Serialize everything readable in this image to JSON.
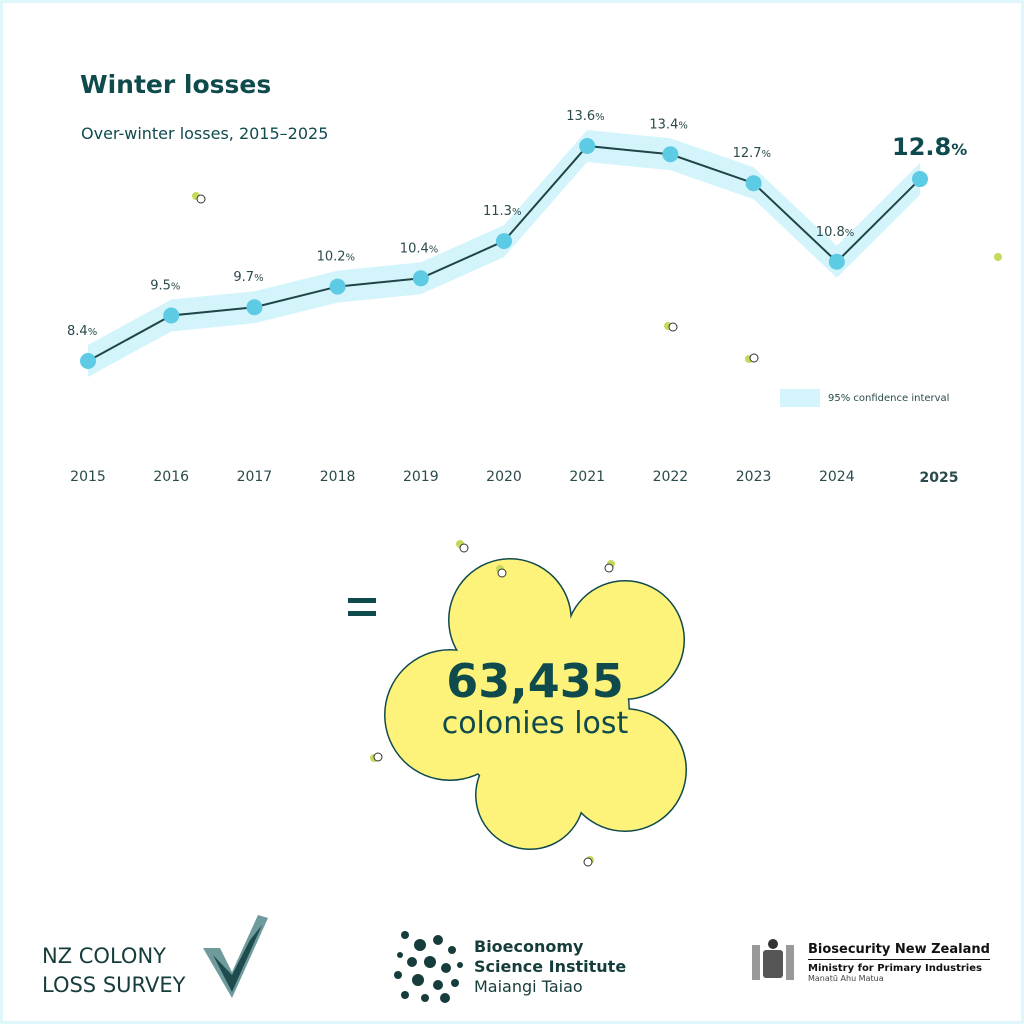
{
  "title": "Winter losses",
  "subtitle": "Over-winter losses, 2015–2025",
  "chart_data": {
    "type": "line",
    "title": "Winter losses",
    "subtitle": "Over-winter losses, 2015–2025",
    "x": [
      "2015",
      "2016",
      "2017",
      "2018",
      "2019",
      "2020",
      "2021",
      "2022",
      "2023",
      "2024",
      "2025"
    ],
    "values": [
      8.4,
      9.5,
      9.7,
      10.2,
      10.4,
      11.3,
      13.6,
      13.4,
      12.7,
      10.8,
      12.8
    ],
    "labels": [
      "8.4",
      "9.5",
      "9.7",
      "10.2",
      "10.4",
      "11.3",
      "13.6",
      "13.4",
      "12.7",
      "10.8",
      "12.8"
    ],
    "unit": "%",
    "legend": "95% confidence interval",
    "legend_position": "bottom-right",
    "grid": false,
    "colors": {
      "line": "#1f4547",
      "point": "#5ccbe3",
      "band": "#d4f4fb"
    }
  },
  "summary": {
    "value": "63,435",
    "label": "colonies lost",
    "equals": "="
  },
  "logos": {
    "colony": [
      "NZ COLONY",
      "LOSS SURVEY"
    ],
    "bsi": [
      "Bioeconomy",
      "Science Institute",
      "Maiangi Taiao"
    ],
    "mpi": [
      "Biosecurity New Zealand",
      "Ministry for Primary Industries",
      "Manatū Ahu Matua"
    ]
  }
}
